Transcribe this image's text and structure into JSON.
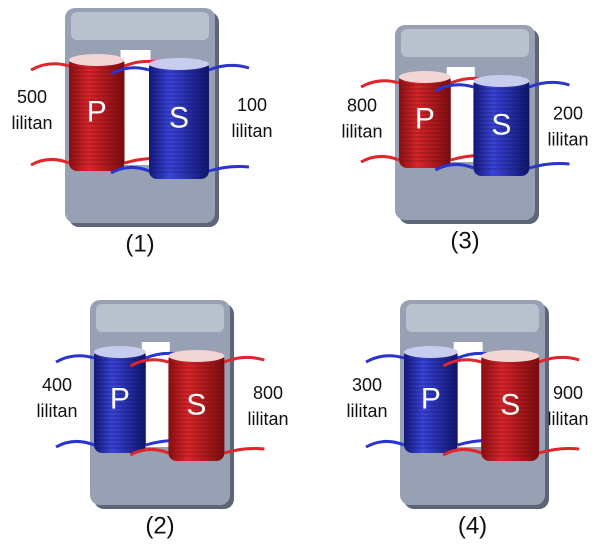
{
  "transformers": [
    {
      "label": "(1)",
      "primary": {
        "name": "P",
        "turns": 500,
        "unit": "lilitan"
      },
      "secondary": {
        "name": "S",
        "turns": 100,
        "unit": "lilitan"
      }
    },
    {
      "label": "(2)",
      "primary": {
        "name": "P",
        "turns": 400,
        "unit": "lilitan"
      },
      "secondary": {
        "name": "S",
        "turns": 800,
        "unit": "lilitan"
      }
    },
    {
      "label": "(3)",
      "primary": {
        "name": "P",
        "turns": 800,
        "unit": "lilitan"
      },
      "secondary": {
        "name": "S",
        "turns": 200,
        "unit": "lilitan"
      }
    },
    {
      "label": "(4)",
      "primary": {
        "name": "P",
        "turns": 300,
        "unit": "lilitan"
      },
      "secondary": {
        "name": "S",
        "turns": 900,
        "unit": "lilitan"
      }
    }
  ]
}
